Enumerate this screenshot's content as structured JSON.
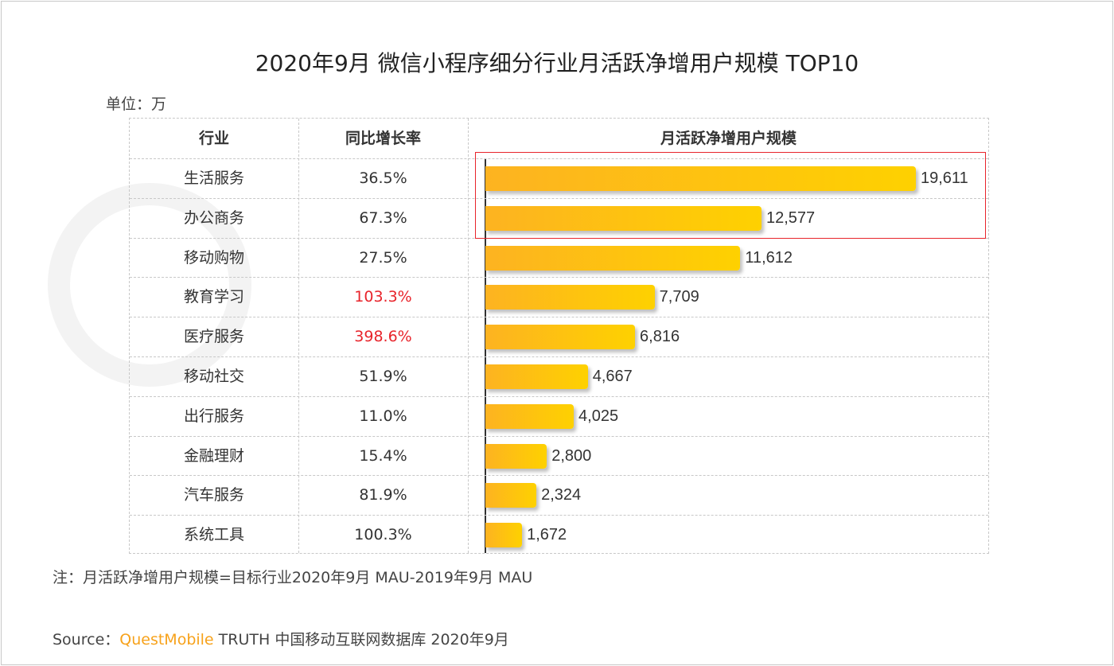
{
  "watermark": "QUESTMOBILE",
  "chart_data": {
    "type": "bar",
    "orientation": "horizontal",
    "title": "2020年9月 微信小程序细分行业月活跃净增用户规模 TOP10",
    "unit_label": "单位：万",
    "columns": [
      "行业",
      "同比增长率",
      "月活跃净增用户规模"
    ],
    "categories": [
      "生活服务",
      "办公商务",
      "移动购物",
      "教育学习",
      "医疗服务",
      "移动社交",
      "出行服务",
      "金融理财",
      "汽车服务",
      "系统工具"
    ],
    "growth": [
      "36.5%",
      "67.3%",
      "27.5%",
      "103.3%",
      "398.6%",
      "51.9%",
      "11.0%",
      "15.4%",
      "81.9%",
      "100.3%"
    ],
    "growth_highlight": [
      false,
      false,
      false,
      true,
      true,
      false,
      false,
      false,
      false,
      false
    ],
    "values": [
      19611,
      12577,
      11612,
      7709,
      6816,
      4667,
      4025,
      2800,
      2324,
      1672
    ],
    "value_labels": [
      "19,611",
      "12,577",
      "11,612",
      "7,709",
      "6,816",
      "4,667",
      "4,025",
      "2,800",
      "2,324",
      "1,672"
    ],
    "highlighted_rows": [
      "生活服务",
      "办公商务"
    ],
    "xlim": [
      0,
      19611
    ],
    "bar_color": [
      "#fdb321",
      "#fed100"
    ],
    "highlight_color": "#e8242b"
  },
  "note": "注：月活跃净增用户规模=目标行业2020年9月 MAU-2019年9月 MAU",
  "source": {
    "prefix": "Source：",
    "brand": "QuestMobile",
    "rest": " TRUTH 中国移动互联网数据库 2020年9月"
  }
}
